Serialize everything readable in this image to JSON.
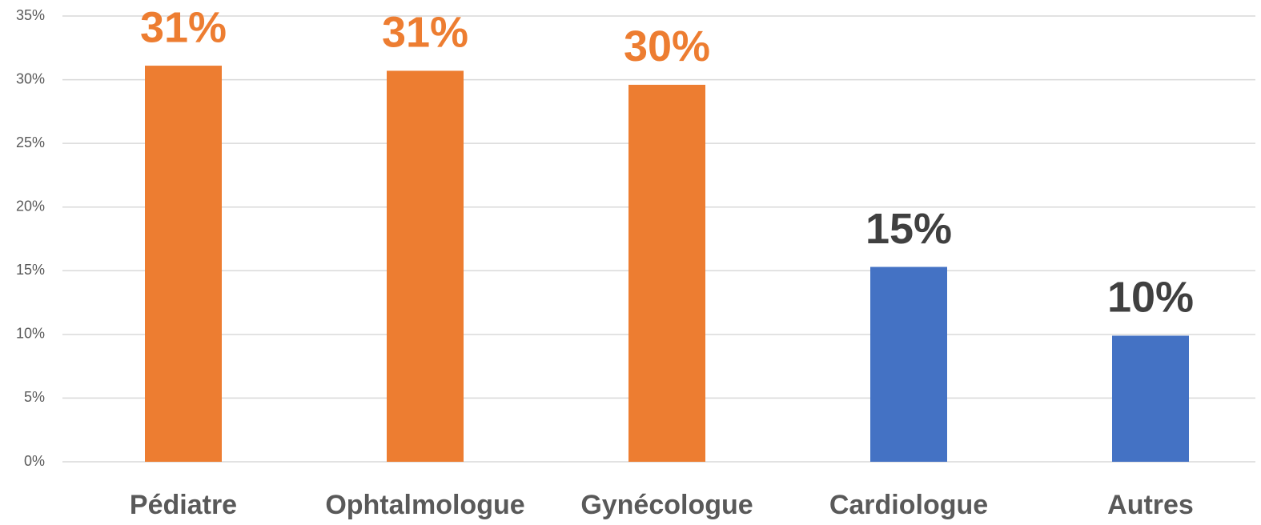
{
  "chart_data": {
    "type": "bar",
    "categories": [
      "Pédiatre",
      "Ophtalmologue",
      "Gynécologue",
      "Cardiologue",
      "Autres"
    ],
    "values": [
      31.1,
      30.7,
      29.6,
      15.3,
      9.9
    ],
    "value_labels": [
      "31%",
      "31%",
      "30%",
      "15%",
      "10%"
    ],
    "colors": [
      "#ED7D31",
      "#ED7D31",
      "#ED7D31",
      "#4472C4",
      "#4472C4"
    ],
    "value_label_colors": [
      "#ED7D31",
      "#ED7D31",
      "#ED7D31",
      "#404040",
      "#404040"
    ],
    "ylim": [
      0,
      35
    ],
    "yticks": [
      {
        "value": 0,
        "label": "0%"
      },
      {
        "value": 5,
        "label": "5%"
      },
      {
        "value": 10,
        "label": "10%"
      },
      {
        "value": 15,
        "label": "15%"
      },
      {
        "value": 20,
        "label": "20%"
      },
      {
        "value": 25,
        "label": "25%"
      },
      {
        "value": 30,
        "label": "30%"
      },
      {
        "value": 35,
        "label": "35%"
      }
    ],
    "grid": true
  }
}
